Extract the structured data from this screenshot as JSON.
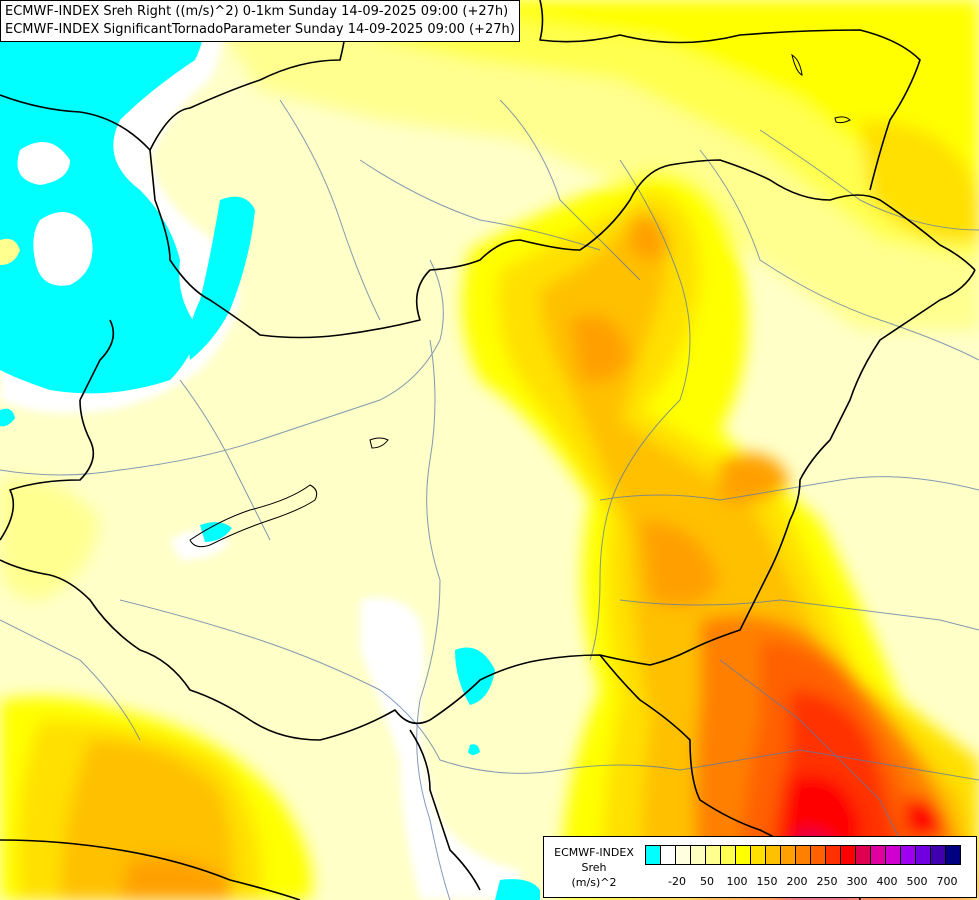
{
  "title": {
    "line1": "ECMWF-INDEX Sreh Right ((m/s)^2) 0-1km Sunday 14-09-2025 09:00 (+27h)",
    "line2": "ECMWF-INDEX SignificantTornadoParameter Sunday 14-09-2025 09:00 (+27h)"
  },
  "legend": {
    "model": "ECMWF-INDEX",
    "variable": "Sreh",
    "unit": "(m/s)^2",
    "colors": [
      "#00ffff",
      "#ffffff",
      "#ffffe0",
      "#ffffc0",
      "#ffff90",
      "#ffff50",
      "#ffff00",
      "#ffe000",
      "#ffc000",
      "#ffa000",
      "#ff8000",
      "#ff6000",
      "#ff3000",
      "#ff0000",
      "#e00050",
      "#e000a0",
      "#d000d0",
      "#a000f0",
      "#7000e0",
      "#4000b0",
      "#000080"
    ],
    "ticks": [
      {
        "label": "-20",
        "at": 1
      },
      {
        "label": "50",
        "at": 3
      },
      {
        "label": "100",
        "at": 5
      },
      {
        "label": "150",
        "at": 7
      },
      {
        "label": "200",
        "at": 9
      },
      {
        "label": "250",
        "at": 11
      },
      {
        "label": "300",
        "at": 13
      },
      {
        "label": "400",
        "at": 15
      },
      {
        "label": "500",
        "at": 17
      },
      {
        "label": "700",
        "at": 19
      }
    ]
  }
}
